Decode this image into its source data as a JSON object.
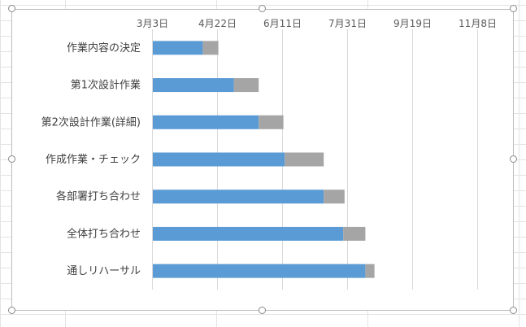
{
  "chart_data": {
    "type": "bar",
    "orientation": "horizontal",
    "stacked": true,
    "categories": [
      "作業内容の決定",
      "第1次設計作業",
      "第2次設計作業(詳細)",
      "作成作業・チェック",
      "各部署打ち合わせ",
      "全体打ち合わせ",
      "通しリハーサル"
    ],
    "x_ticks": [
      "3月3日",
      "4月22日",
      "6月11日",
      "7月31日",
      "9月19日",
      "11月8日"
    ],
    "x_tick_dates": [
      "2023-03-03",
      "2023-04-22",
      "2023-06-11",
      "2023-07-31",
      "2023-09-19",
      "2023-11-08"
    ],
    "xlim": [
      "2023-03-03",
      "2023-11-08"
    ],
    "axis_position": "top",
    "grid": true,
    "legend": "none",
    "series": [
      {
        "role": "start",
        "values": [
          "2023-04-11",
          "2023-05-05",
          "2023-05-24",
          "2023-06-13",
          "2023-07-13",
          "2023-07-28",
          "2023-08-14"
        ]
      },
      {
        "role": "duration_days",
        "values": [
          12,
          19,
          19,
          30,
          16,
          17,
          7
        ]
      }
    ],
    "colors": {
      "start": "#5b9bd5",
      "duration": "#a5a5a5",
      "grid": "#d9d9d9"
    }
  }
}
